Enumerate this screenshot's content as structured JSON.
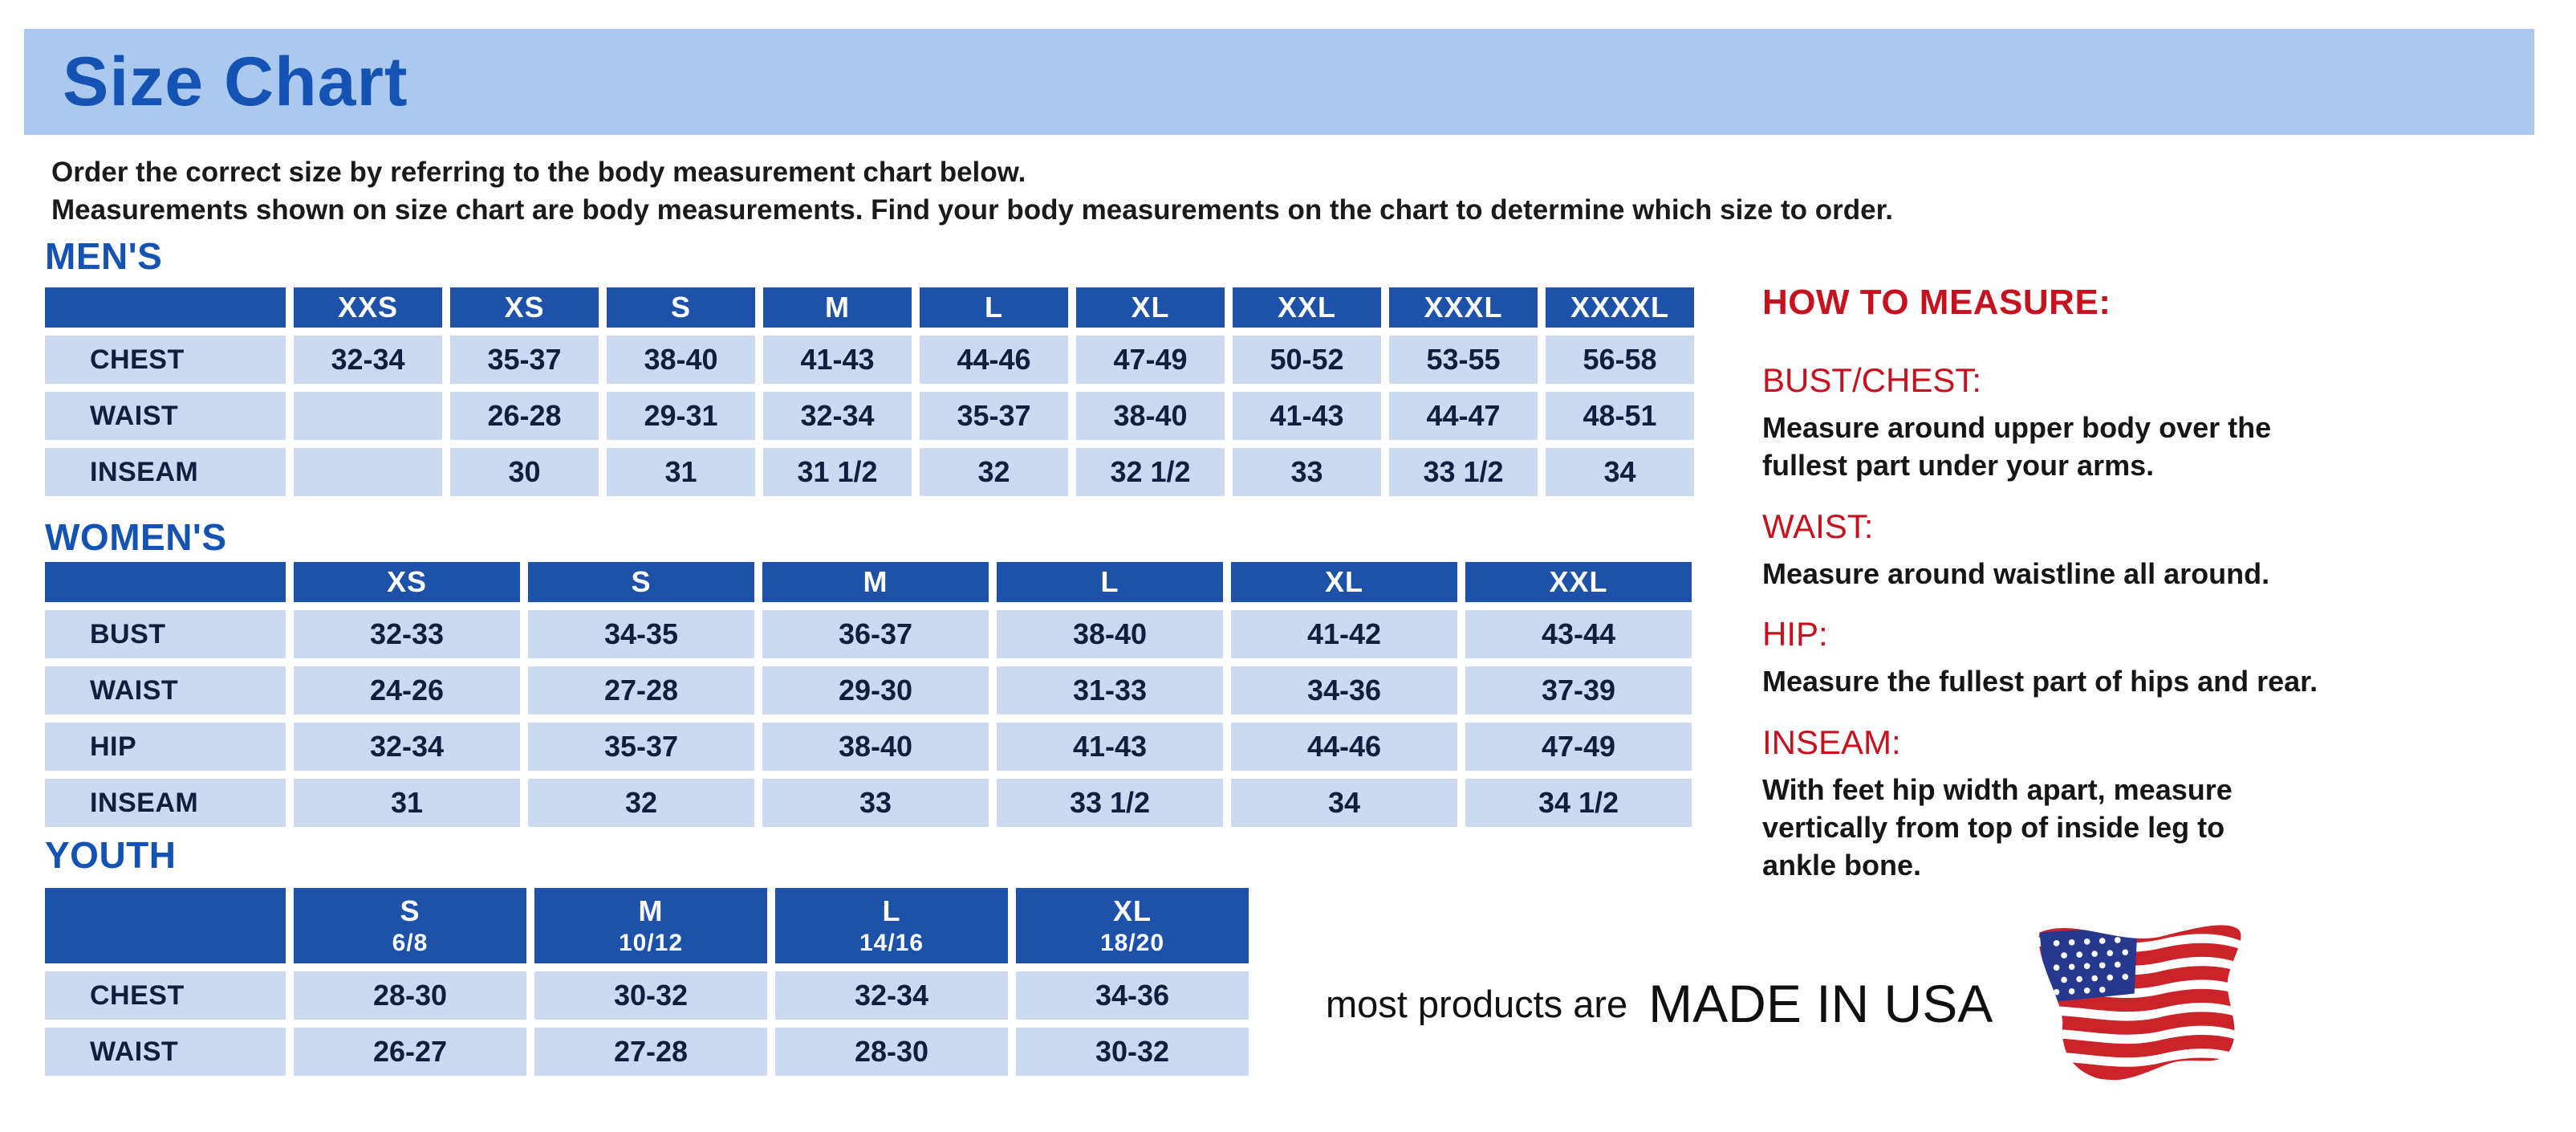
{
  "page": {
    "title": "Size Chart",
    "intro_line1": "Order the correct size by referring to the body measurement chart below.",
    "intro_line2": "Measurements shown on size chart are body measurements.  Find your body measurements on the chart to determine which size to order."
  },
  "tables": {
    "mens": {
      "heading": "MEN'S",
      "columns": [
        "XXS",
        "XS",
        "S",
        "M",
        "L",
        "XL",
        "XXL",
        "XXXL",
        "XXXXL"
      ],
      "rows": [
        {
          "label": "CHEST",
          "values": [
            "32-34",
            "35-37",
            "38-40",
            "41-43",
            "44-46",
            "47-49",
            "50-52",
            "53-55",
            "56-58"
          ]
        },
        {
          "label": "WAIST",
          "values": [
            "",
            "26-28",
            "29-31",
            "32-34",
            "35-37",
            "38-40",
            "41-43",
            "44-47",
            "48-51"
          ]
        },
        {
          "label": "INSEAM",
          "values": [
            "",
            "30",
            "31",
            "31 1/2",
            "32",
            "32 1/2",
            "33",
            "33 1/2",
            "34"
          ]
        }
      ]
    },
    "womens": {
      "heading": "WOMEN'S",
      "columns": [
        "XS",
        "S",
        "M",
        "L",
        "XL",
        "XXL"
      ],
      "rows": [
        {
          "label": "BUST",
          "values": [
            "32-33",
            "34-35",
            "36-37",
            "38-40",
            "41-42",
            "43-44"
          ]
        },
        {
          "label": "WAIST",
          "values": [
            "24-26",
            "27-28",
            "29-30",
            "31-33",
            "34-36",
            "37-39"
          ]
        },
        {
          "label": "HIP",
          "values": [
            "32-34",
            "35-37",
            "38-40",
            "41-43",
            "44-46",
            "47-49"
          ]
        },
        {
          "label": "INSEAM",
          "values": [
            "31",
            "32",
            "33",
            "33 1/2",
            "34",
            "34 1/2"
          ]
        }
      ]
    },
    "youth": {
      "heading": "YOUTH",
      "columns": [
        {
          "size": "S",
          "sub": "6/8"
        },
        {
          "size": "M",
          "sub": "10/12"
        },
        {
          "size": "L",
          "sub": "14/16"
        },
        {
          "size": "XL",
          "sub": "18/20"
        }
      ],
      "rows": [
        {
          "label": "CHEST",
          "values": [
            "28-30",
            "30-32",
            "32-34",
            "34-36"
          ]
        },
        {
          "label": "WAIST",
          "values": [
            "26-27",
            "27-28",
            "28-30",
            "30-32"
          ]
        }
      ]
    }
  },
  "how_to_measure": {
    "heading": "HOW TO MEASURE:",
    "sections": [
      {
        "label": "BUST/CHEST:",
        "lines": [
          "Measure around upper body over the",
          "fullest part under your arms."
        ]
      },
      {
        "label": "WAIST:",
        "lines": [
          "Measure around waistline all around."
        ]
      },
      {
        "label": "HIP:",
        "lines": [
          "Measure the fullest part of hips and rear."
        ]
      },
      {
        "label": "INSEAM:",
        "lines": [
          "With feet hip width apart, measure",
          "vertically from top of inside leg to",
          "ankle bone."
        ]
      }
    ]
  },
  "footer": {
    "prefix": "most products are",
    "made_in": "MADE IN USA",
    "flag_icon": "us-flag-icon"
  },
  "colors": {
    "band_bg": "#abc9ee",
    "heading_blue": "#1453b4",
    "table_header_bg": "#1d52a8",
    "cell_bg": "#cbdaf1",
    "accent_red": "#c5121f",
    "flag_red": "#cc2229",
    "flag_blue": "#27398f"
  }
}
